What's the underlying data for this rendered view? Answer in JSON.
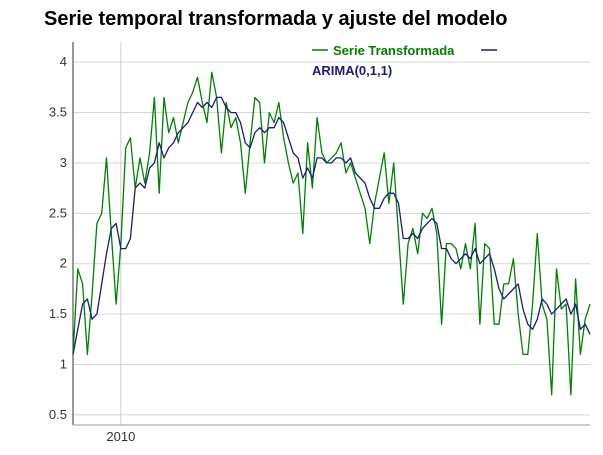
{
  "chart_data": {
    "type": "line",
    "title": "Serie temporal transformada y ajuste del modelo",
    "xlabel": "",
    "ylabel": "",
    "ylim": [
      0.4,
      4.2
    ],
    "yticks": [
      0.5,
      1,
      1.5,
      2,
      2.5,
      3,
      3.5,
      4
    ],
    "ytick_labels": [
      "0.5",
      "1",
      "1.5",
      "2",
      "2.5",
      "3",
      "3.5",
      "4"
    ],
    "x_tick_index": 10,
    "x_tick_label": "2010",
    "grid": true,
    "legend_position": "top-right",
    "series": [
      {
        "name": "Serie Transformada",
        "color": "#008000",
        "values": [
          1.1,
          1.95,
          1.8,
          1.1,
          1.7,
          2.4,
          2.5,
          3.05,
          2.3,
          1.6,
          2.2,
          3.15,
          3.25,
          2.75,
          3.05,
          2.8,
          3.1,
          3.65,
          2.7,
          3.65,
          3.3,
          3.45,
          3.2,
          3.4,
          3.6,
          3.7,
          3.85,
          3.6,
          3.4,
          3.9,
          3.65,
          3.1,
          3.6,
          3.35,
          3.45,
          3.2,
          2.7,
          3.2,
          3.65,
          3.6,
          3.0,
          3.5,
          3.4,
          3.6,
          3.25,
          3.0,
          2.8,
          2.9,
          2.3,
          3.2,
          2.75,
          3.45,
          3.1,
          3.0,
          3.05,
          3.1,
          3.2,
          2.9,
          3.0,
          2.85,
          2.7,
          2.55,
          2.2,
          2.6,
          2.85,
          3.1,
          2.6,
          3.0,
          2.3,
          1.6,
          2.2,
          2.35,
          2.1,
          2.5,
          2.45,
          2.55,
          2.3,
          1.4,
          2.2,
          2.2,
          2.15,
          1.95,
          2.2,
          1.95,
          2.4,
          1.4,
          2.2,
          2.15,
          1.4,
          1.4,
          1.8,
          1.8,
          2.05,
          1.5,
          1.1,
          1.1,
          1.6,
          2.3,
          1.6,
          1.45,
          0.7,
          1.95,
          1.55,
          1.6,
          0.7,
          1.85,
          1.1,
          1.45,
          1.6
        ],
        "fitted_from_index": null
      },
      {
        "name": "ARIMA(0,1,1)",
        "color": "#1a1a80",
        "values": [
          1.1,
          1.35,
          1.6,
          1.65,
          1.45,
          1.5,
          1.8,
          2.1,
          2.35,
          2.4,
          2.15,
          2.15,
          2.25,
          2.75,
          2.8,
          2.75,
          2.95,
          3.0,
          3.2,
          3.05,
          3.15,
          3.2,
          3.3,
          3.35,
          3.4,
          3.5,
          3.6,
          3.55,
          3.6,
          3.55,
          3.65,
          3.65,
          3.55,
          3.5,
          3.5,
          3.4,
          3.2,
          3.15,
          3.3,
          3.35,
          3.3,
          3.35,
          3.35,
          3.45,
          3.4,
          3.25,
          3.1,
          3.05,
          2.85,
          2.95,
          2.85,
          3.05,
          3.05,
          3.0,
          3.0,
          3.05,
          3.05,
          3.0,
          3.05,
          2.9,
          2.85,
          2.8,
          2.65,
          2.55,
          2.55,
          2.65,
          2.7,
          2.7,
          2.6,
          2.25,
          2.25,
          2.3,
          2.25,
          2.35,
          2.4,
          2.45,
          2.4,
          2.15,
          2.15,
          2.05,
          2.0,
          2.05,
          2.1,
          2.05,
          2.15,
          2.0,
          2.05,
          2.1,
          1.95,
          1.75,
          1.65,
          1.7,
          1.75,
          1.8,
          1.55,
          1.4,
          1.35,
          1.45,
          1.65,
          1.6,
          1.5,
          1.55,
          1.6,
          1.65,
          1.5,
          1.6,
          1.35,
          1.4,
          1.3
        ]
      }
    ]
  }
}
